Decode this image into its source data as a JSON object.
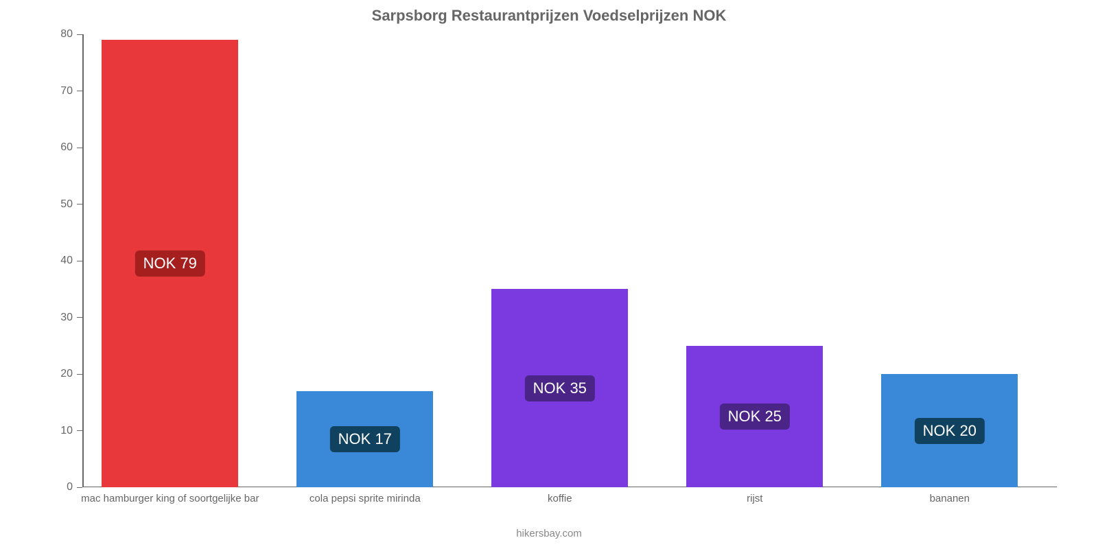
{
  "chart": {
    "type": "bar",
    "title": "Sarpsborg Restaurantprijzen Voedselprijzen NOK",
    "title_fontsize": 22,
    "title_color": "#666666",
    "background_color": "#ffffff",
    "axis_color": "#666666",
    "tick_fontsize": 16,
    "tick_color": "#666666",
    "ylim_min": 0,
    "ylim_max": 80,
    "yticks": [
      0,
      10,
      20,
      30,
      40,
      50,
      60,
      70,
      80
    ],
    "bar_width_pct": 14,
    "bar_gap_pct": 6,
    "bar_start_pct": 2,
    "categories": [
      "mac hamburger king of soortgelijke bar",
      "cola pepsi sprite mirinda",
      "koffie",
      "rijst",
      "bananen"
    ],
    "values": [
      79,
      17,
      35,
      25,
      20
    ],
    "value_labels": [
      "NOK 79",
      "NOK 17",
      "NOK 35",
      "NOK 25",
      "NOK 20"
    ],
    "bar_colors": [
      "#e8383b",
      "#3a89d8",
      "#7a3ae0",
      "#7a3ae0",
      "#3a89d8"
    ],
    "label_bg_colors": [
      "#a51f1f",
      "#10425f",
      "#4b2487",
      "#4b2487",
      "#10425f"
    ],
    "label_fontsize": 22,
    "label_text_color": "#ffffff",
    "category_fontsize": 15,
    "category_color": "#666666"
  },
  "attribution": {
    "text": "hikersbay.com",
    "fontsize": 15,
    "color": "#888888"
  }
}
